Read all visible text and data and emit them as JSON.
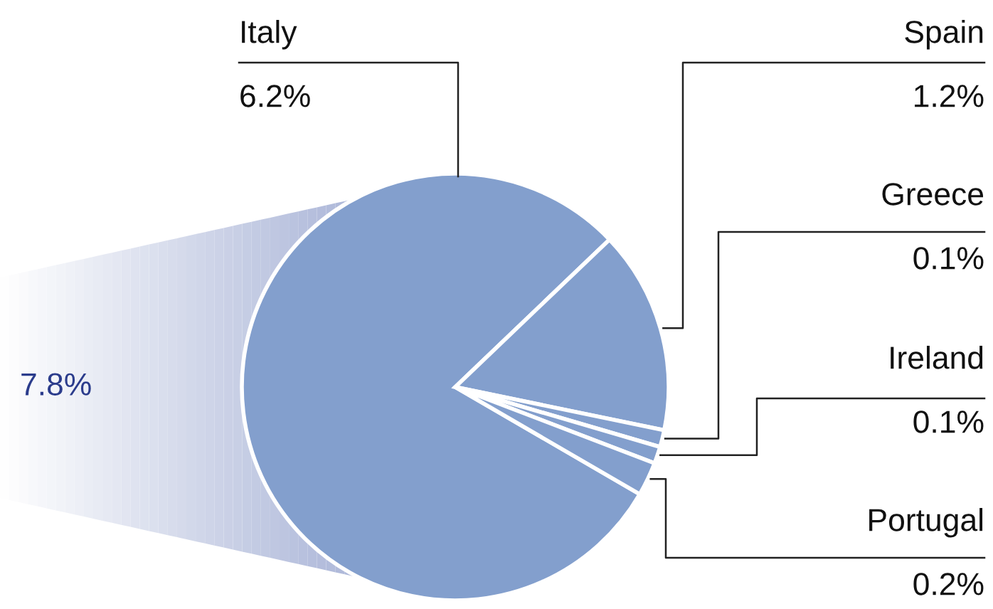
{
  "chart_data": {
    "type": "pie",
    "categories": [
      "Italy",
      "Spain",
      "Greece",
      "Ireland",
      "Portugal"
    ],
    "values": [
      6.2,
      1.2,
      0.1,
      0.1,
      0.2
    ],
    "colors": [
      "#839fcd",
      "#839fcd",
      "#839fcd",
      "#839fcd",
      "#839fcd"
    ],
    "value_labels": [
      "6.2%",
      "1.2%",
      "0.1%",
      "0.1%",
      "0.2%"
    ],
    "annotations": [
      "7.8%"
    ]
  }
}
